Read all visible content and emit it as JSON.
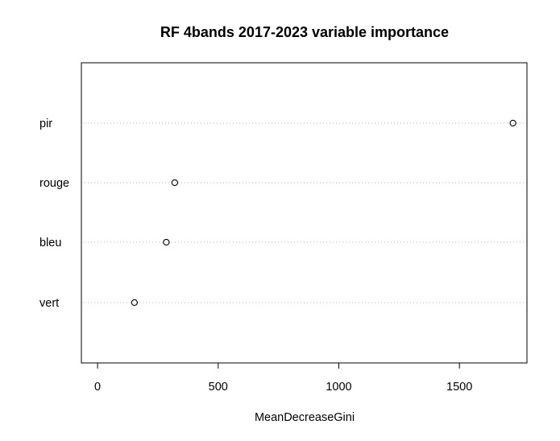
{
  "chart_data": {
    "type": "scatter",
    "title": "RF 4bands 2017-2023 variable importance",
    "xlabel": "MeanDecreaseGini",
    "ylabel": "",
    "xlim": [
      -67,
      1780
    ],
    "xticks": [
      "0",
      "500",
      "1000",
      "1500"
    ],
    "grid": "dotted horizontal lines at each variable",
    "categories": [
      "pir",
      "rouge",
      "bleu",
      "vert"
    ],
    "values": [
      1722,
      320,
      285,
      153
    ]
  }
}
